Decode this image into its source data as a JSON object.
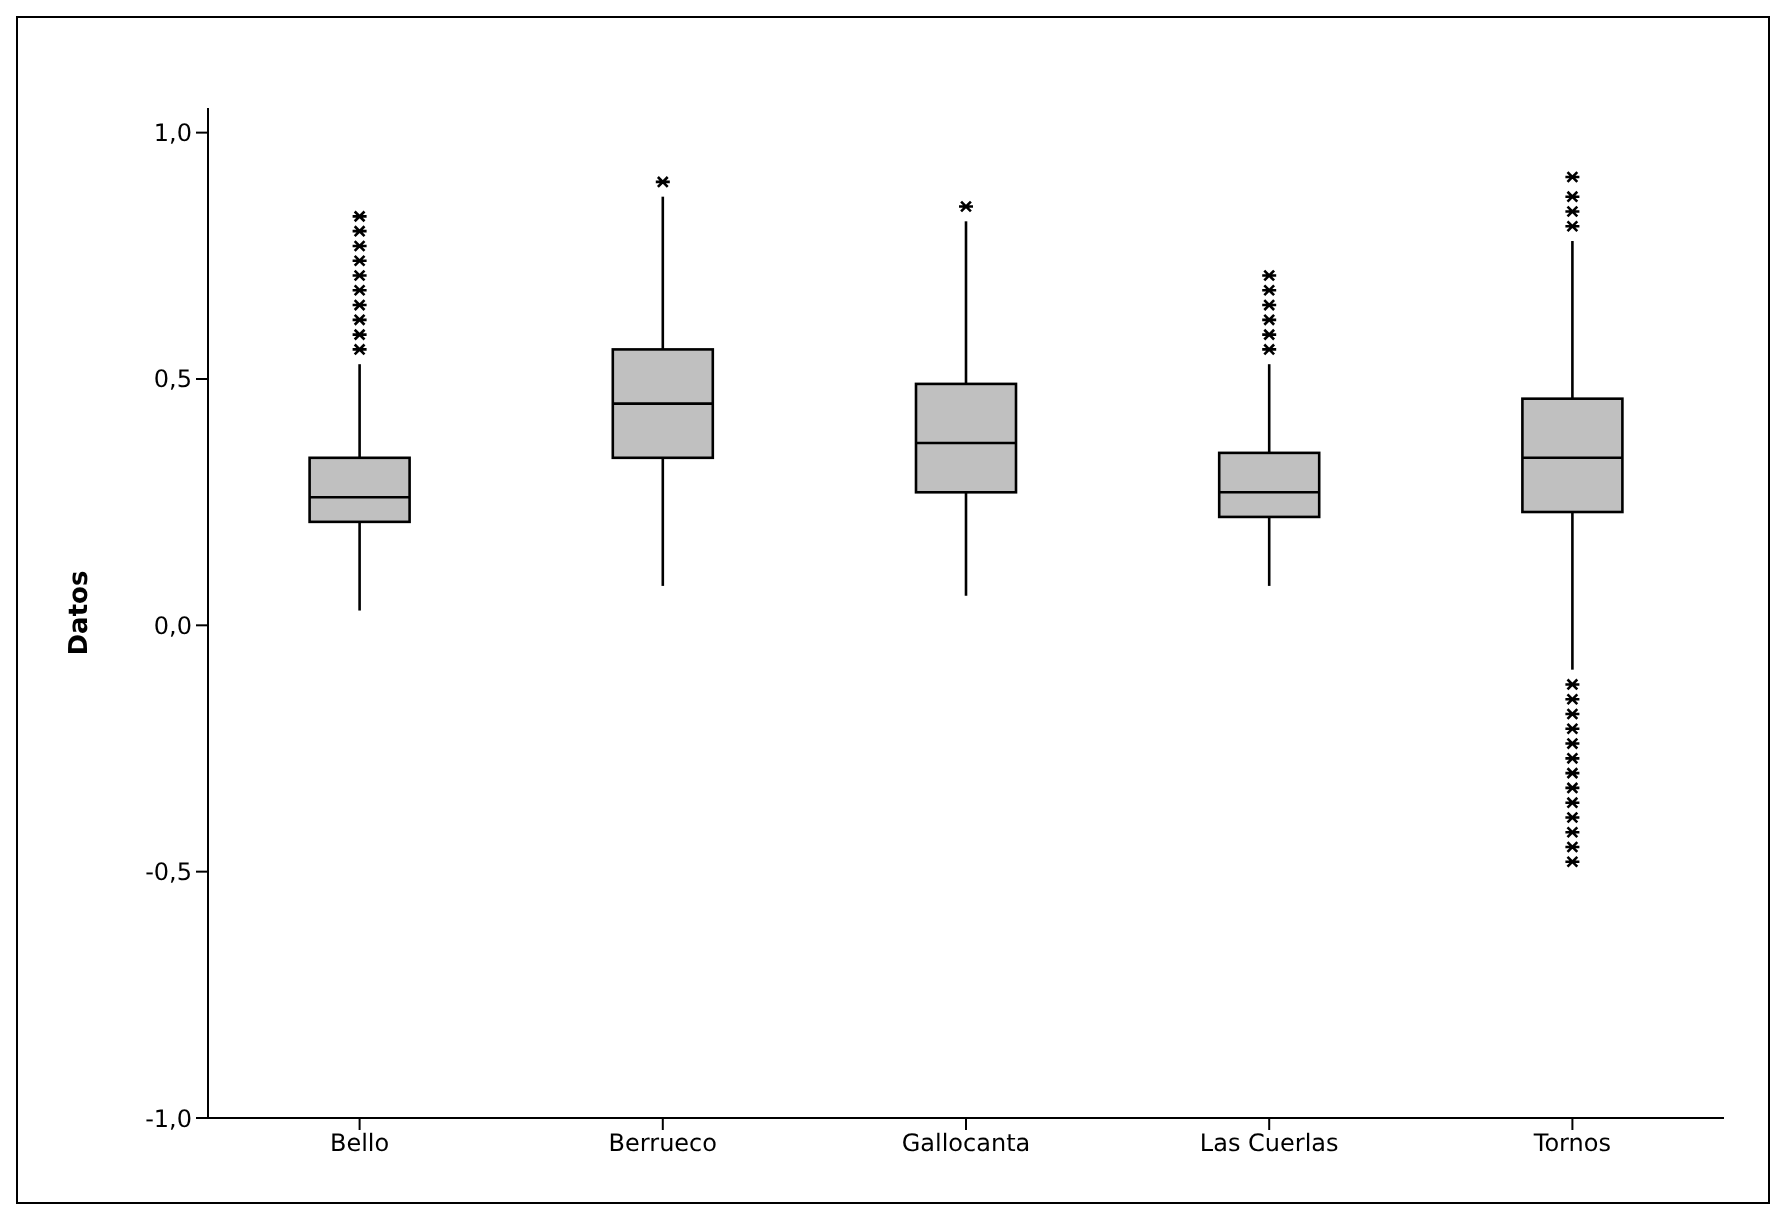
{
  "chart_data": {
    "type": "box",
    "ylabel": "Datos",
    "categories": [
      "Bello",
      "Berrueco",
      "Gallocanta",
      "Las Cuerlas",
      "Tornos"
    ],
    "series": [
      {
        "color": "#c0c0c0",
        "boxes": [
          {
            "low": 0.03,
            "q1": 0.21,
            "median": 0.26,
            "q3": 0.34,
            "high": 0.53,
            "outliers": [
              0.56,
              0.59,
              0.62,
              0.65,
              0.68,
              0.71,
              0.74,
              0.77,
              0.8,
              0.83
            ]
          },
          {
            "low": 0.08,
            "q1": 0.34,
            "median": 0.45,
            "q3": 0.56,
            "high": 0.87,
            "outliers": [
              0.9
            ]
          },
          {
            "low": 0.06,
            "q1": 0.27,
            "median": 0.37,
            "q3": 0.49,
            "high": 0.82,
            "outliers": [
              0.85
            ]
          },
          {
            "low": 0.08,
            "q1": 0.22,
            "median": 0.27,
            "q3": 0.35,
            "high": 0.53,
            "outliers": [
              0.56,
              0.59,
              0.62,
              0.65,
              0.68,
              0.71
            ]
          },
          {
            "low": -0.09,
            "q1": 0.23,
            "median": 0.34,
            "q3": 0.46,
            "high": 0.78,
            "outliers": [
              0.81,
              0.84,
              0.87,
              0.91,
              -0.12,
              -0.15,
              -0.18,
              -0.21,
              -0.24,
              -0.27,
              -0.3,
              -0.33,
              -0.36,
              -0.39,
              -0.42,
              -0.45,
              -0.48
            ]
          }
        ]
      }
    ],
    "ylim": [
      -1,
      1.05
    ],
    "yticks": [
      {
        "value": -1,
        "label": "-1,0"
      },
      {
        "value": -0.5,
        "label": "-0,5"
      },
      {
        "value": 0,
        "label": "0,0"
      },
      {
        "value": 0.5,
        "label": "0,5"
      },
      {
        "value": 1,
        "label": "1,0"
      }
    ],
    "marker": "star"
  }
}
